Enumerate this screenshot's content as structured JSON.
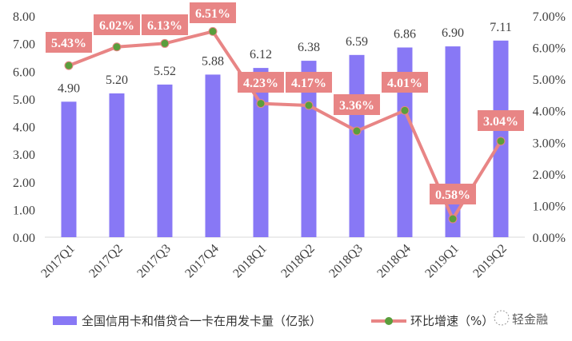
{
  "chart_data": {
    "type": "bar+line",
    "categories": [
      "2017Q1",
      "2017Q2",
      "2017Q3",
      "2017Q4",
      "2018Q1",
      "2018Q2",
      "2018Q3",
      "2018Q4",
      "2019Q1",
      "2019Q2"
    ],
    "series": [
      {
        "name": "全国信用卡和借贷合一卡在用发卡量（亿张）",
        "type": "bar",
        "axis": "left",
        "color": "#8878F5",
        "values": [
          4.9,
          5.2,
          5.52,
          5.88,
          6.12,
          6.38,
          6.59,
          6.86,
          6.9,
          7.11
        ],
        "labels": [
          "4.90",
          "5.20",
          "5.52",
          "5.88",
          "6.12",
          "6.38",
          "6.59",
          "6.86",
          "6.90",
          "7.11"
        ]
      },
      {
        "name": "环比增速（%）",
        "type": "line",
        "axis": "right",
        "color": "#E88585",
        "marker_color": "#5A9E3C",
        "values": [
          5.43,
          6.02,
          6.13,
          6.51,
          4.23,
          4.17,
          3.36,
          4.01,
          0.58,
          3.04
        ],
        "labels": [
          "5.43%",
          "6.02%",
          "6.13%",
          "6.51%",
          "4.23%",
          "4.17%",
          "3.36%",
          "4.01%",
          "0.58%",
          "3.04%"
        ]
      }
    ],
    "y_left": {
      "range": [
        0,
        8
      ],
      "ticks": [
        "0.00",
        "1.00",
        "2.00",
        "3.00",
        "4.00",
        "5.00",
        "6.00",
        "7.00",
        "8.00"
      ]
    },
    "y_right": {
      "range": [
        0,
        7
      ],
      "ticks": [
        "0.00%",
        "1.00%",
        "2.00%",
        "3.00%",
        "4.00%",
        "5.00%",
        "6.00%",
        "7.00%"
      ]
    },
    "grid": false,
    "legend_placement": "bottom"
  },
  "watermark": "轻金融"
}
